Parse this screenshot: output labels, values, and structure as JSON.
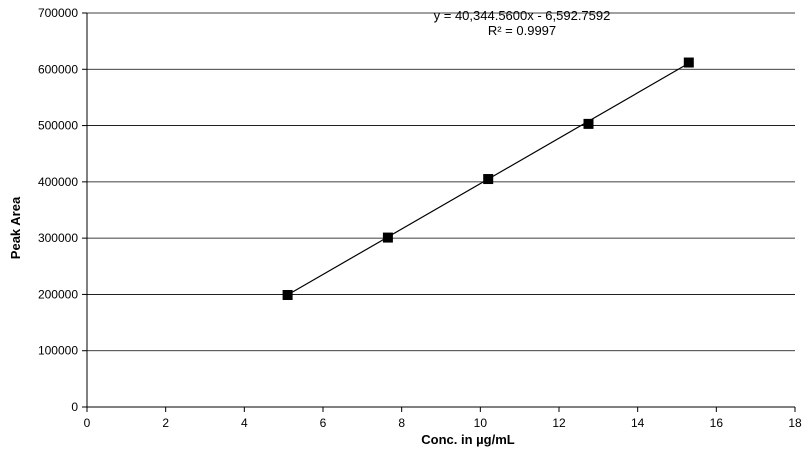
{
  "chart_data": {
    "type": "scatter",
    "title": "",
    "xlabel": "Conc. in µg/mL",
    "ylabel": "Peak Area",
    "xlim": [
      0,
      18
    ],
    "ylim": [
      0,
      700000
    ],
    "x_ticks": [
      "0",
      "2",
      "4",
      "6",
      "8",
      "10",
      "12",
      "14",
      "16",
      "18"
    ],
    "y_ticks": [
      "0",
      "100000",
      "200000",
      "300000",
      "400000",
      "500000",
      "600000",
      "700000"
    ],
    "grid": "horizontal",
    "series": [
      {
        "x": [
          5.1,
          7.65,
          10.2,
          12.75,
          15.3
        ],
        "y": [
          199000,
          301000,
          405000,
          503000,
          612000
        ],
        "marker": "square",
        "color": "#000000"
      }
    ],
    "trendline": {
      "slope": 40344.56,
      "intercept": -6592.7592,
      "x_range": [
        5.1,
        15.3
      ],
      "equation": "y = 40,344.5600x - 6,592.7592",
      "r_squared": "R² = 0.9997"
    }
  }
}
